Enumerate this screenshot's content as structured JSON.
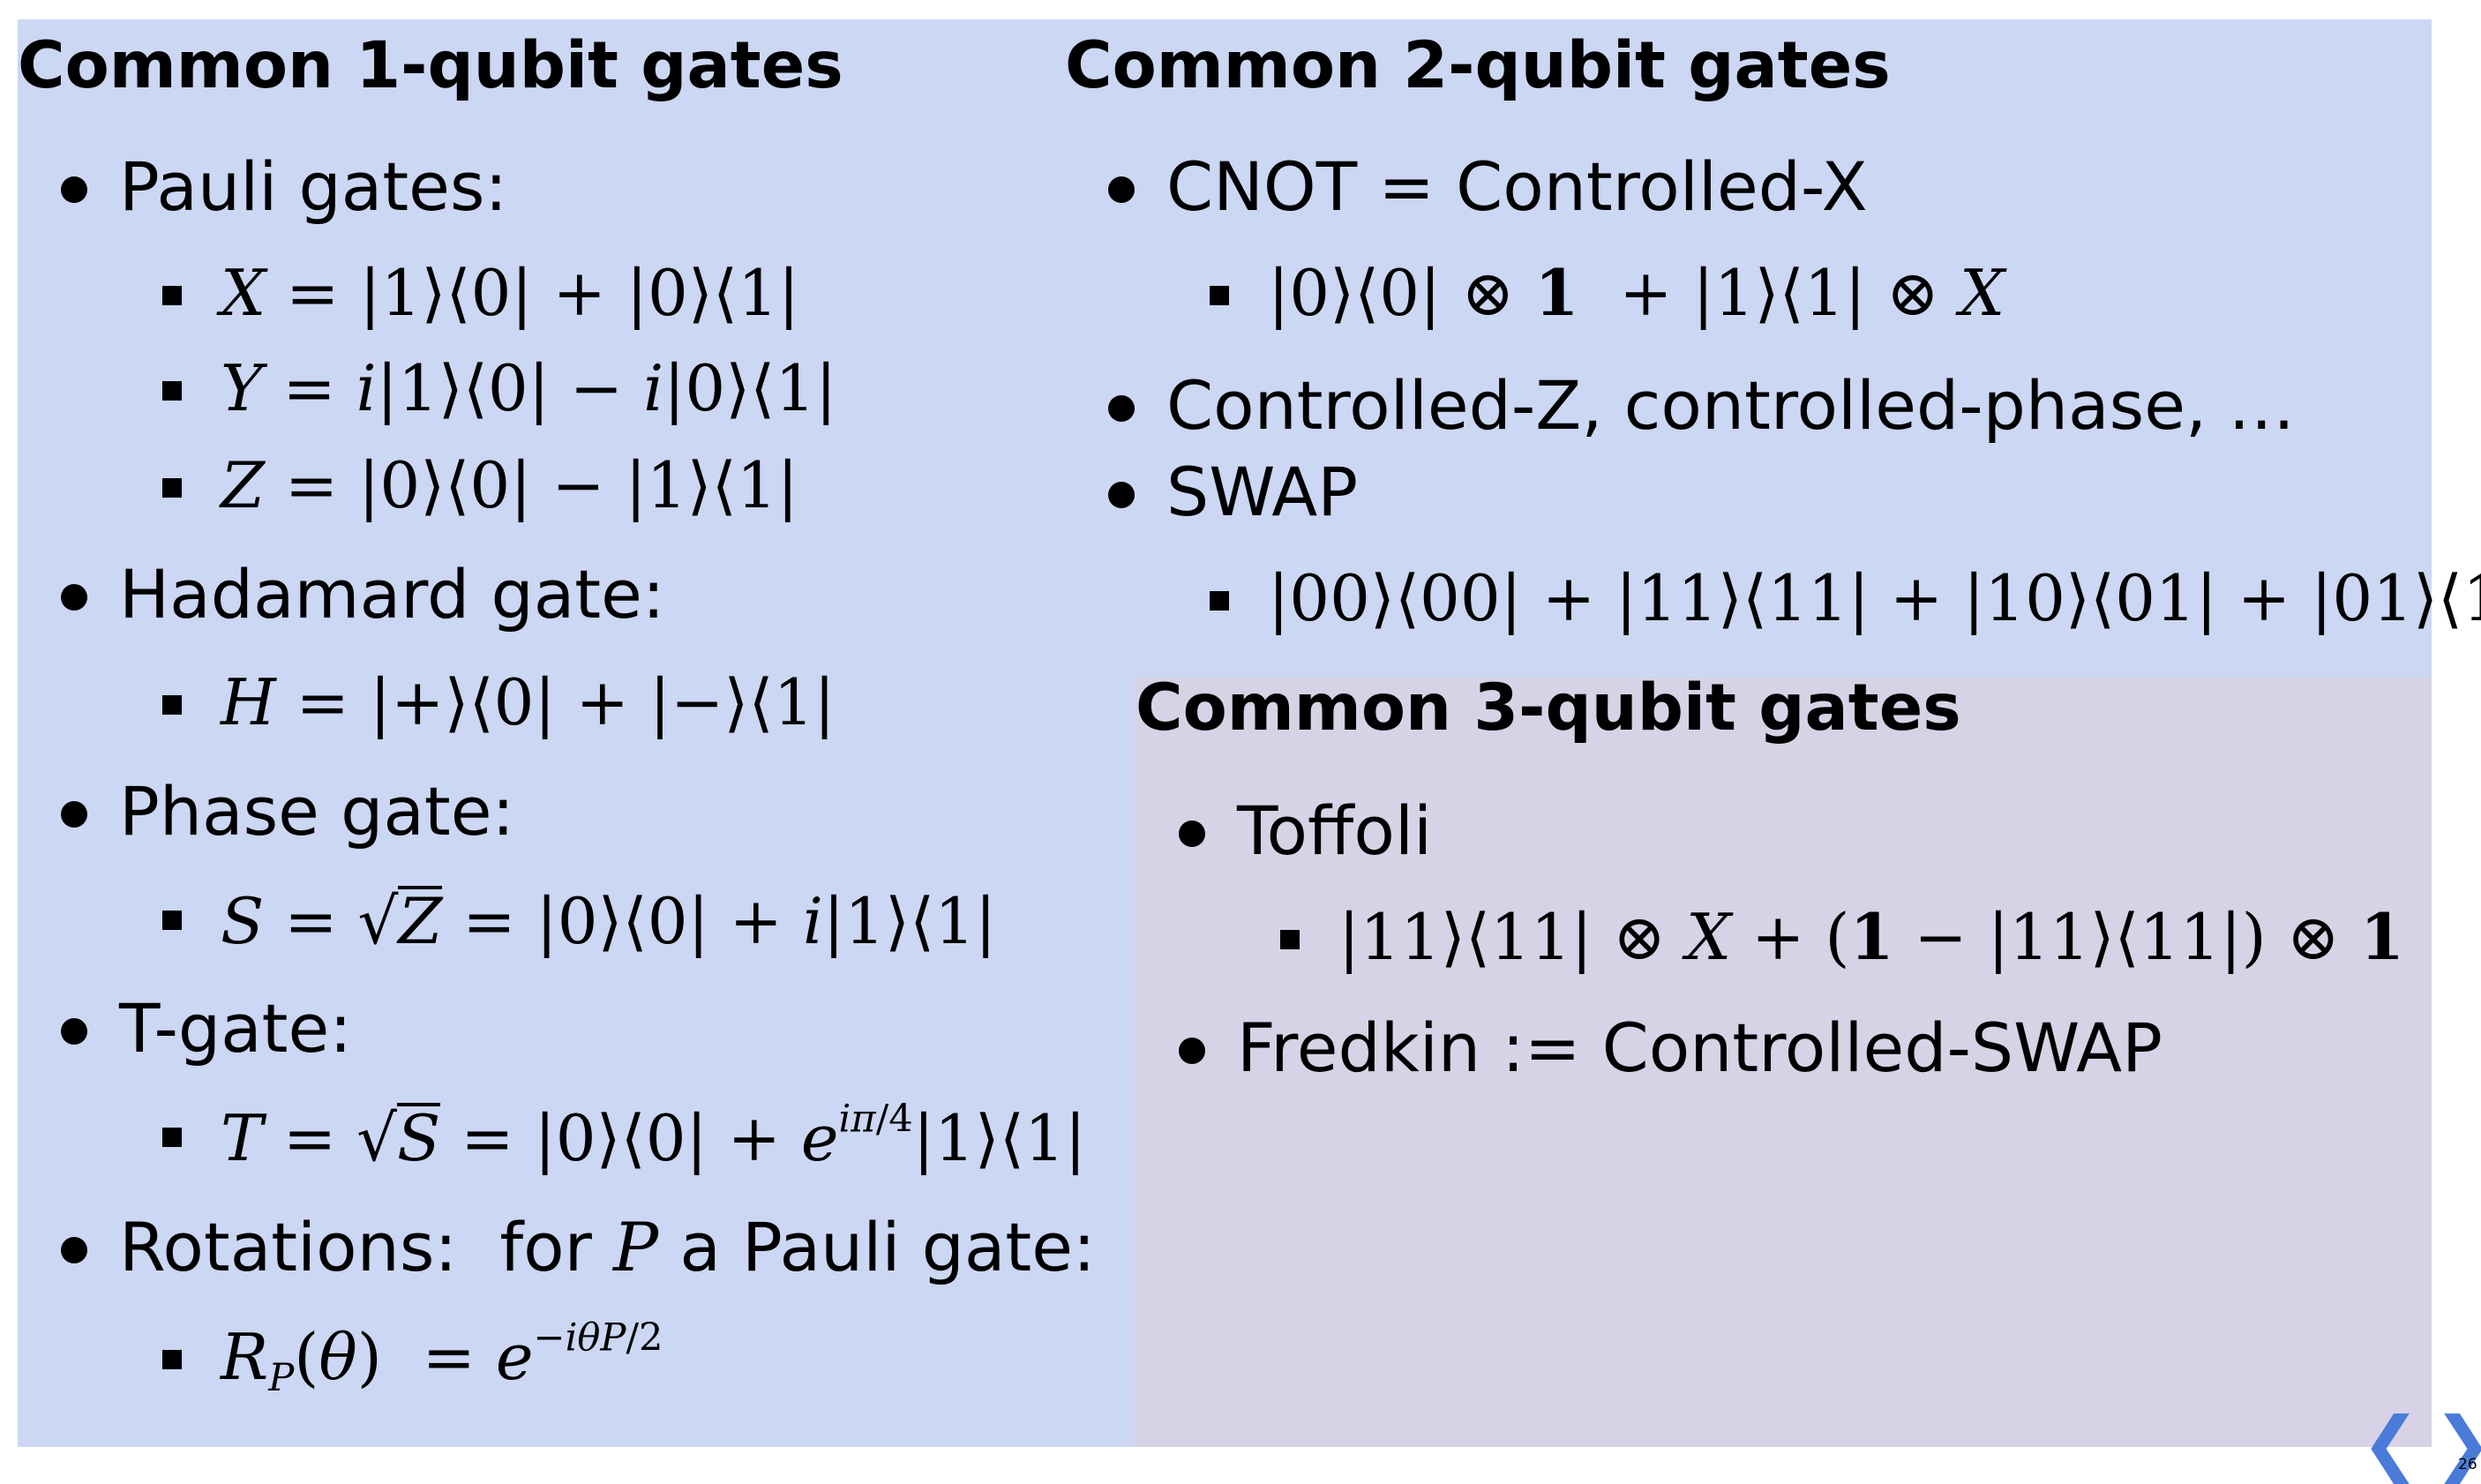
{
  "left": {
    "title": "Common 1-qubit gates",
    "pauli_label": "Pauli gates:",
    "hadamard_label": "Hadamard gate:",
    "phase_label": "Phase gate:",
    "tgate_label": "T-gate:",
    "rotations_pre": "Rotations:  for ",
    "rotations_var": "P",
    "rotations_post": " a Pauli gate:"
  },
  "right_top": {
    "title": "Common 2-qubit gates",
    "cnot_label": "CNOT = Controlled-X",
    "cz_label": "Controlled-Z, controlled-phase, …",
    "swap_label": "SWAP"
  },
  "right_bottom": {
    "title": "Common 3-qubit gates",
    "toffoli_label": "Toffoli",
    "fredkin_label": "Fredkin := Controlled-SWAP"
  },
  "nav": {
    "prev_icon": "chevron-left-icon",
    "next_icon": "chevron-right-icon",
    "prev_glyph": "❮",
    "next_glyph": "❯",
    "page_number": "26"
  },
  "colors": {
    "blue_panel": "#cbd7f3",
    "purple_panel": "#d7d2e6",
    "nav_accent": "#4a7bd8"
  }
}
